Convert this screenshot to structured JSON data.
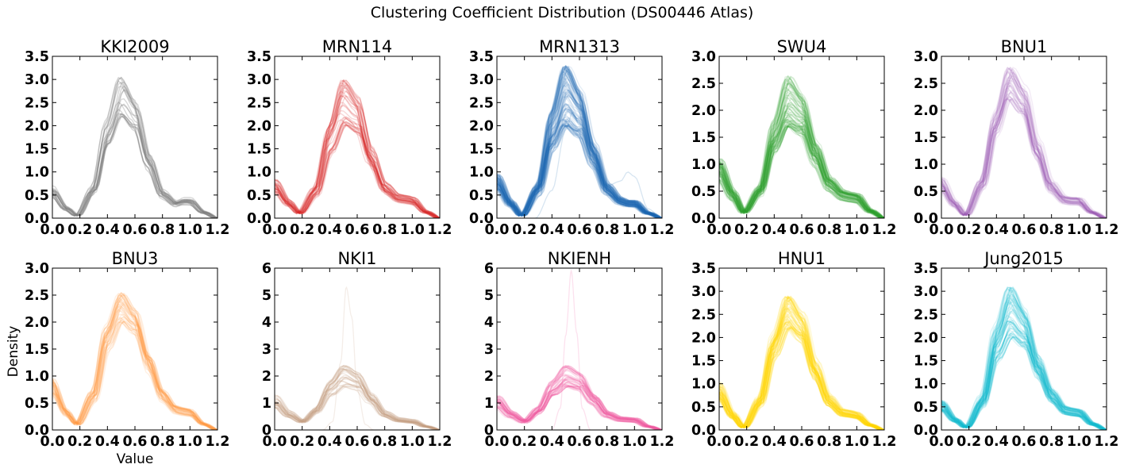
{
  "figure": {
    "title": "Clustering Coefficient Distribution (DS00446 Atlas)",
    "xlabel": "Value",
    "ylabel": "Density"
  },
  "chart_data": [
    {
      "type": "line",
      "title": "KKI2009",
      "color": "#7f7f7f",
      "xlim": [
        0,
        1.2
      ],
      "ylim": [
        0,
        3.5
      ],
      "yticks": [
        "0.0",
        "0.5",
        "1.0",
        "1.5",
        "2.0",
        "2.5",
        "3.0",
        "3.5"
      ],
      "xticks": [
        "0.0",
        "0.2",
        "0.4",
        "0.6",
        "0.8",
        "1.0",
        "1.2"
      ],
      "n_curves": 22,
      "opacity": 0.3,
      "mean_curve": {
        "x": [
          0,
          0.1,
          0.18,
          0.3,
          0.4,
          0.5,
          0.6,
          0.7,
          0.8,
          0.9,
          0.95,
          1.0,
          1.1,
          1.2
        ],
        "y": [
          0.55,
          0.2,
          0.05,
          0.6,
          1.8,
          2.6,
          2.2,
          1.2,
          0.5,
          0.3,
          0.35,
          0.35,
          0.12,
          0.0
        ]
      },
      "peak_range": [
        2.2,
        3.05
      ],
      "outliers": []
    },
    {
      "type": "line",
      "title": "MRN114",
      "color": "#d62728",
      "xlim": [
        0,
        1.2
      ],
      "ylim": [
        0,
        3.5
      ],
      "yticks": [
        "0.0",
        "0.5",
        "1.0",
        "1.5",
        "2.0",
        "2.5",
        "3.0",
        "3.5"
      ],
      "xticks": [
        "0.0",
        "0.2",
        "0.4",
        "0.6",
        "0.8",
        "1.0",
        "1.2"
      ],
      "n_curves": 40,
      "opacity": 0.18,
      "mean_curve": {
        "x": [
          0,
          0.1,
          0.18,
          0.3,
          0.4,
          0.5,
          0.6,
          0.7,
          0.8,
          0.9,
          0.95,
          1.0,
          1.1,
          1.2
        ],
        "y": [
          0.65,
          0.3,
          0.1,
          0.55,
          1.6,
          2.3,
          2.05,
          1.2,
          0.6,
          0.4,
          0.38,
          0.35,
          0.12,
          0.0
        ]
      },
      "peak_range": [
        2.0,
        3.0
      ],
      "outliers": []
    },
    {
      "type": "line",
      "title": "MRN1313",
      "color": "#1f6fb4",
      "xlim": [
        0,
        1.2
      ],
      "ylim": [
        0,
        3.5
      ],
      "yticks": [
        "0.0",
        "0.5",
        "1.0",
        "1.5",
        "2.0",
        "2.5",
        "3.0",
        "3.5"
      ],
      "xticks": [
        "0.0",
        "0.2",
        "0.4",
        "0.6",
        "0.8",
        "1.0",
        "1.2"
      ],
      "n_curves": 120,
      "opacity": 0.12,
      "mean_curve": {
        "x": [
          0,
          0.1,
          0.18,
          0.3,
          0.4,
          0.5,
          0.6,
          0.7,
          0.8,
          0.9,
          0.95,
          1.0,
          1.1,
          1.2
        ],
        "y": [
          0.75,
          0.3,
          0.05,
          0.6,
          1.8,
          2.5,
          2.15,
          1.3,
          0.6,
          0.35,
          0.3,
          0.3,
          0.1,
          0.0
        ]
      },
      "peak_range": [
        2.0,
        3.3
      ],
      "outliers": [
        {
          "x": [
            0.28,
            0.4,
            0.5,
            0.55,
            0.6,
            0.7,
            0.8,
            0.9,
            0.95,
            1.0,
            1.1,
            1.2
          ],
          "y": [
            0.0,
            0.6,
            1.9,
            2.3,
            2.0,
            1.2,
            0.7,
            0.8,
            1.0,
            0.9,
            0.2,
            0.0
          ]
        }
      ]
    },
    {
      "type": "line",
      "title": "SWU4",
      "color": "#2ca02c",
      "xlim": [
        0,
        1.2
      ],
      "ylim": [
        0,
        3.0
      ],
      "yticks": [
        "0.0",
        "0.5",
        "1.0",
        "1.5",
        "2.0",
        "2.5",
        "3.0"
      ],
      "xticks": [
        "0.0",
        "0.2",
        "0.4",
        "0.6",
        "0.8",
        "1.0",
        "1.2"
      ],
      "n_curves": 80,
      "opacity": 0.15,
      "mean_curve": {
        "x": [
          0,
          0.1,
          0.18,
          0.3,
          0.4,
          0.5,
          0.6,
          0.7,
          0.8,
          0.9,
          0.95,
          1.0,
          1.1,
          1.2
        ],
        "y": [
          0.85,
          0.4,
          0.1,
          0.5,
          1.5,
          2.15,
          1.9,
          1.15,
          0.6,
          0.4,
          0.37,
          0.35,
          0.12,
          0.0
        ]
      },
      "peak_range": [
        1.7,
        2.65
      ],
      "outliers": []
    },
    {
      "type": "line",
      "title": "BNU1",
      "color": "#9b59b6",
      "xlim": [
        0,
        1.2
      ],
      "ylim": [
        0,
        3.0
      ],
      "yticks": [
        "0.0",
        "0.5",
        "1.0",
        "1.5",
        "2.0",
        "2.5",
        "3.0"
      ],
      "xticks": [
        "0.0",
        "0.2",
        "0.4",
        "0.6",
        "0.8",
        "1.0",
        "1.2"
      ],
      "n_curves": 50,
      "opacity": 0.12,
      "mean_curve": {
        "x": [
          0,
          0.1,
          0.18,
          0.3,
          0.4,
          0.5,
          0.6,
          0.7,
          0.8,
          0.9,
          0.95,
          1.0,
          1.1,
          1.2
        ],
        "y": [
          0.6,
          0.25,
          0.05,
          0.6,
          1.7,
          2.45,
          2.1,
          1.2,
          0.55,
          0.32,
          0.3,
          0.3,
          0.1,
          0.0
        ]
      },
      "peak_range": [
        2.2,
        2.8
      ],
      "outliers": []
    },
    {
      "type": "line",
      "title": "BNU3",
      "color": "#ff9a42",
      "xlim": [
        0,
        1.2
      ],
      "ylim": [
        0,
        3.0
      ],
      "yticks": [
        "0.0",
        "0.5",
        "1.0",
        "1.5",
        "2.0",
        "2.5",
        "3.0"
      ],
      "xticks": [
        "0.0",
        "0.2",
        "0.4",
        "0.6",
        "0.8",
        "1.0",
        "1.2"
      ],
      "n_curves": 45,
      "opacity": 0.15,
      "mean_curve": {
        "x": [
          0,
          0.1,
          0.18,
          0.3,
          0.4,
          0.5,
          0.6,
          0.7,
          0.8,
          0.9,
          0.95,
          1.0,
          1.1,
          1.2
        ],
        "y": [
          0.75,
          0.3,
          0.1,
          0.6,
          1.7,
          2.3,
          2.0,
          1.2,
          0.6,
          0.35,
          0.32,
          0.3,
          0.1,
          0.0
        ]
      },
      "peak_range": [
        2.0,
        2.55
      ],
      "outliers": []
    },
    {
      "type": "line",
      "title": "NKI1",
      "color": "#c49c7e",
      "xlim": [
        0,
        1.2
      ],
      "ylim": [
        0,
        6
      ],
      "yticks": [
        "0",
        "1",
        "2",
        "3",
        "4",
        "5",
        "6"
      ],
      "xticks": [
        "0.0",
        "0.2",
        "0.4",
        "0.6",
        "0.8",
        "1.0",
        "1.2"
      ],
      "n_curves": 30,
      "opacity": 0.2,
      "mean_curve": {
        "x": [
          0,
          0.1,
          0.2,
          0.3,
          0.4,
          0.5,
          0.6,
          0.7,
          0.8,
          0.9,
          1.0,
          1.1,
          1.2
        ],
        "y": [
          1.0,
          0.55,
          0.3,
          0.7,
          1.5,
          1.95,
          1.75,
          1.1,
          0.55,
          0.35,
          0.3,
          0.12,
          0.0
        ]
      },
      "peak_range": [
        1.6,
        2.4
      ],
      "outliers": [
        {
          "x": [
            0.35,
            0.42,
            0.48,
            0.52,
            0.56,
            0.6,
            0.66,
            0.72
          ],
          "y": [
            0.0,
            0.3,
            2.5,
            5.3,
            4.2,
            1.5,
            0.2,
            0.0
          ]
        }
      ]
    },
    {
      "type": "line",
      "title": "NKIENH",
      "color": "#ef5ba1",
      "xlim": [
        0,
        1.2
      ],
      "ylim": [
        0,
        6
      ],
      "yticks": [
        "0",
        "1",
        "2",
        "3",
        "4",
        "5",
        "6"
      ],
      "xticks": [
        "0.0",
        "0.2",
        "0.4",
        "0.6",
        "0.8",
        "1.0",
        "1.2"
      ],
      "n_curves": 40,
      "opacity": 0.2,
      "mean_curve": {
        "x": [
          0,
          0.1,
          0.2,
          0.3,
          0.4,
          0.5,
          0.6,
          0.7,
          0.8,
          0.9,
          1.0,
          1.1,
          1.2
        ],
        "y": [
          1.0,
          0.55,
          0.3,
          0.7,
          1.5,
          1.95,
          1.75,
          1.1,
          0.55,
          0.38,
          0.35,
          0.12,
          0.0
        ]
      },
      "peak_range": [
        1.6,
        2.4
      ],
      "outliers": [
        {
          "x": [
            0.4,
            0.46,
            0.5,
            0.54,
            0.58,
            0.62,
            0.68
          ],
          "y": [
            0.0,
            0.8,
            3.5,
            5.9,
            3.6,
            0.8,
            0.0
          ]
        }
      ]
    },
    {
      "type": "line",
      "title": "HNU1",
      "color": "#ffd500",
      "xlim": [
        0,
        1.2
      ],
      "ylim": [
        0,
        3.5
      ],
      "yticks": [
        "0.0",
        "0.5",
        "1.0",
        "1.5",
        "2.0",
        "2.5",
        "3.0",
        "3.5"
      ],
      "xticks": [
        "0.0",
        "0.2",
        "0.4",
        "0.6",
        "0.8",
        "1.0",
        "1.2"
      ],
      "n_curves": 70,
      "opacity": 0.15,
      "mean_curve": {
        "x": [
          0,
          0.1,
          0.18,
          0.3,
          0.4,
          0.5,
          0.6,
          0.7,
          0.8,
          0.9,
          0.95,
          1.0,
          1.1,
          1.2
        ],
        "y": [
          0.8,
          0.3,
          0.05,
          0.6,
          1.8,
          2.55,
          2.2,
          1.25,
          0.6,
          0.35,
          0.33,
          0.3,
          0.1,
          0.0
        ]
      },
      "peak_range": [
        2.2,
        2.9
      ],
      "outliers": []
    },
    {
      "type": "line",
      "title": "Jung2015",
      "color": "#17becf",
      "xlim": [
        0,
        1.2
      ],
      "ylim": [
        0,
        3.5
      ],
      "yticks": [
        "0.0",
        "0.5",
        "1.0",
        "1.5",
        "2.0",
        "2.5",
        "3.0",
        "3.5"
      ],
      "xticks": [
        "0.0",
        "0.2",
        "0.4",
        "0.6",
        "0.8",
        "1.0",
        "1.2"
      ],
      "n_curves": 70,
      "opacity": 0.15,
      "mean_curve": {
        "x": [
          0,
          0.1,
          0.18,
          0.3,
          0.4,
          0.5,
          0.6,
          0.7,
          0.8,
          0.9,
          0.95,
          1.0,
          1.1,
          1.2
        ],
        "y": [
          0.5,
          0.2,
          0.05,
          0.6,
          1.8,
          2.45,
          2.1,
          1.3,
          0.7,
          0.4,
          0.37,
          0.35,
          0.12,
          0.0
        ]
      },
      "peak_range": [
        2.0,
        3.1
      ],
      "outliers": []
    }
  ]
}
